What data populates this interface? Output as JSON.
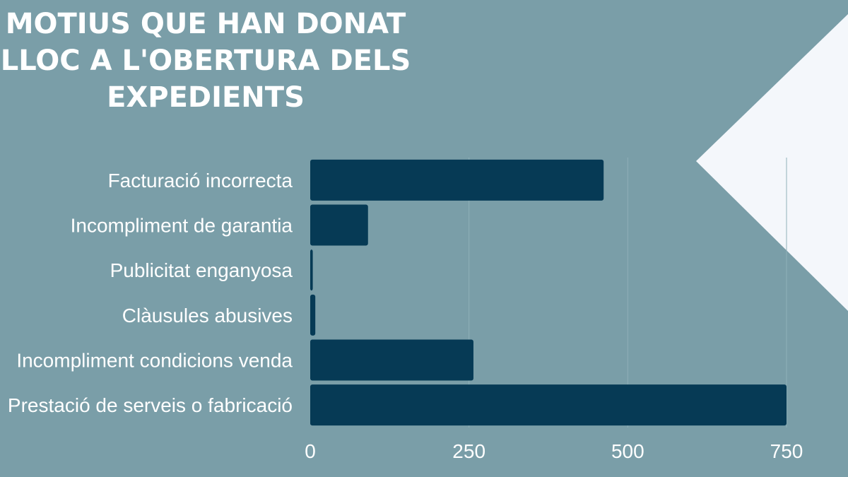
{
  "title": "MOTIUS QUE HAN DONAT LLOC A L'OBERTURA DELS EXPEDIENTS",
  "colors": {
    "background": "#7a9ea8",
    "bar": "#063a55",
    "text": "#ffffff",
    "gridline": "#8fb0b8",
    "corner_shape": "#f4f7fb"
  },
  "chart_data": {
    "type": "bar",
    "orientation": "horizontal",
    "title": "MOTIUS QUE HAN DONAT LLOC A L'OBERTURA DELS EXPEDIENTS",
    "xlabel": "",
    "ylabel": "",
    "categories": [
      "Facturació incorrecta",
      "Incompliment de garantia",
      "Publicitat enganyosa",
      "Clàusules abusives",
      "Incompliment condicions venda",
      "Prestació de serveis o fabricació"
    ],
    "values": [
      462,
      91,
      4,
      8,
      257,
      750
    ],
    "xlim": [
      0,
      750
    ],
    "xticks": [
      0,
      250,
      500,
      750
    ],
    "grid": true,
    "legend": "none"
  }
}
